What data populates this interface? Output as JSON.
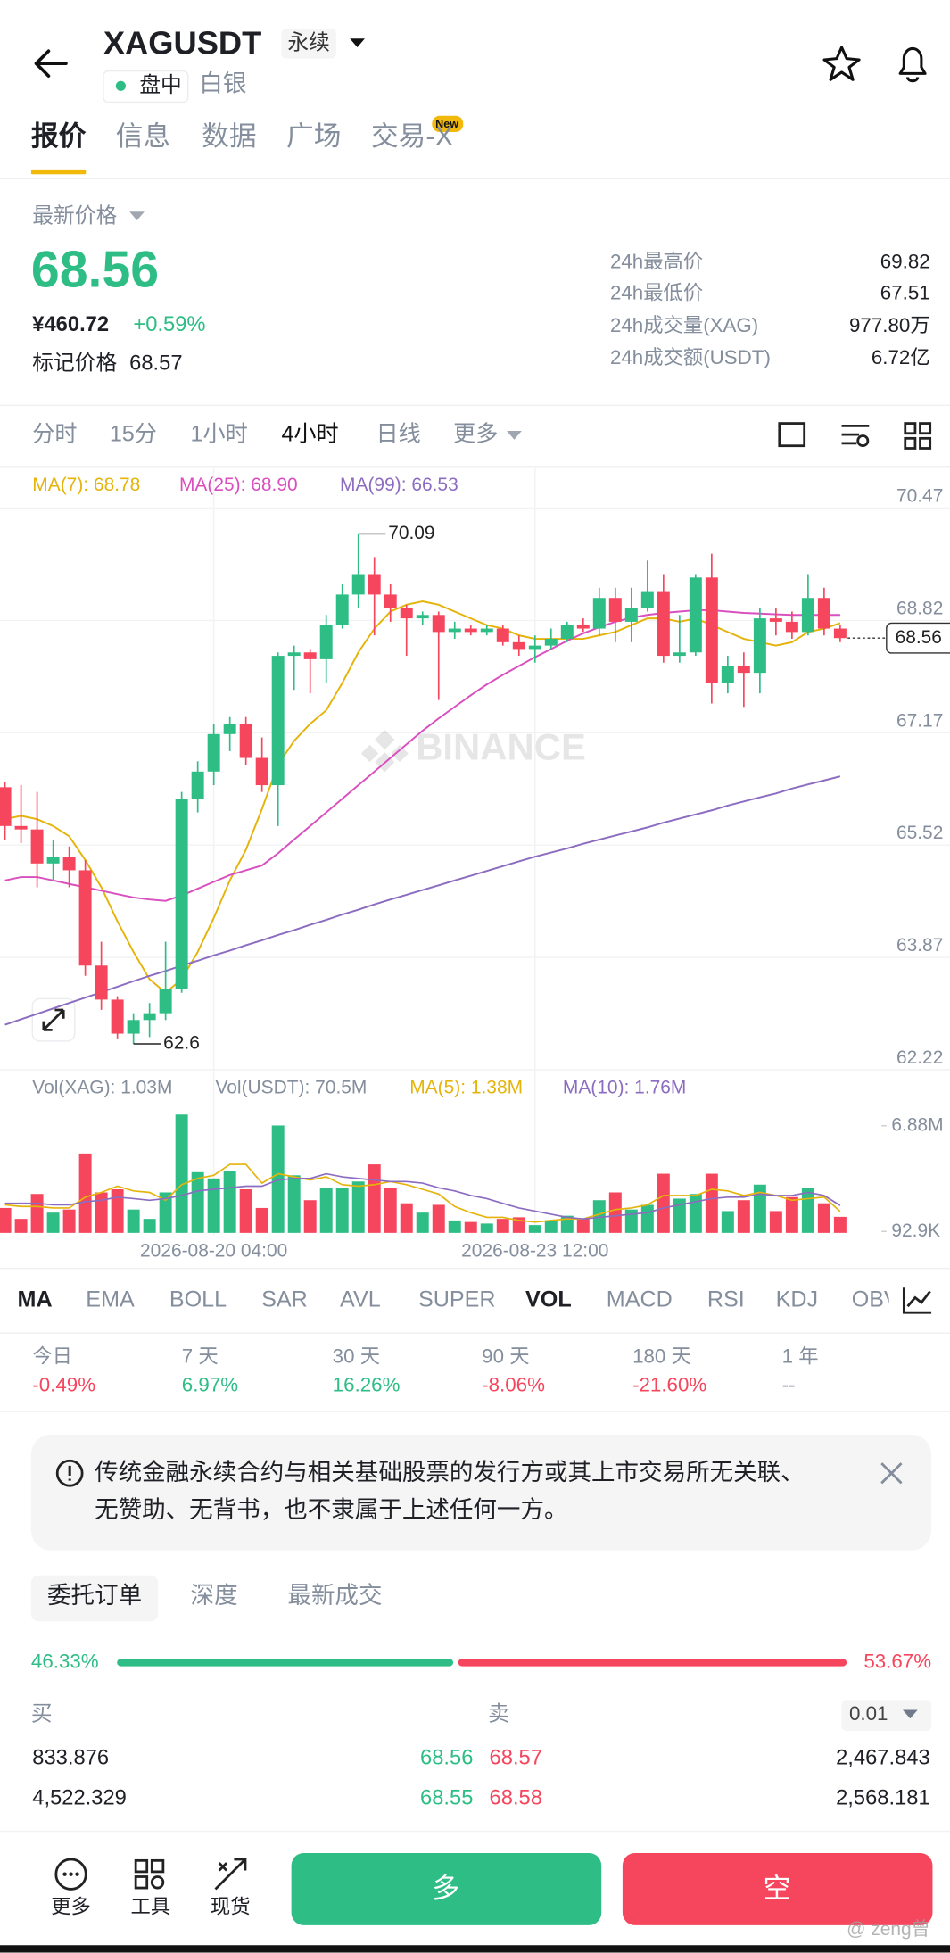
{
  "header": {
    "symbol": "XAGUSDT",
    "contract": "永续",
    "status": "盘中",
    "name": "白银"
  },
  "tabs": [
    "报价",
    "信息",
    "数据",
    "广场",
    "交易-X"
  ],
  "tab_badge": "New",
  "price": {
    "label": "最新价格",
    "last": "68.56",
    "cny": "¥460.72",
    "change": "+0.59%",
    "mark_label": "标记价格",
    "mark_price": "68.57"
  },
  "stats": [
    {
      "label": "24h最高价",
      "value": "69.82"
    },
    {
      "label": "24h最低价",
      "value": "67.51"
    },
    {
      "label": "24h成交量(XAG)",
      "value": "977.80万"
    },
    {
      "label": "24h成交额(USDT)",
      "value": "6.72亿"
    }
  ],
  "intervals": [
    "分时",
    "15分",
    "1小时",
    "4小时",
    "日线",
    "更多"
  ],
  "chart_data": {
    "type": "candlestick",
    "watermark": "BINANCE",
    "grid": true,
    "up_color": "#2ebd85",
    "down_color": "#f6465d",
    "categories": [
      null,
      null,
      null,
      null,
      null,
      null,
      null,
      null,
      null,
      null,
      null,
      null,
      null,
      "2026-08-20 04:00",
      null,
      null,
      null,
      null,
      null,
      null,
      null,
      null,
      null,
      null,
      null,
      null,
      null,
      null,
      null,
      null,
      null,
      null,
      null,
      "2026-08-23 12:00",
      null,
      null,
      null,
      null,
      null,
      null,
      null,
      null,
      null,
      null,
      null,
      null,
      null,
      null,
      null,
      null,
      null,
      null,
      null
    ],
    "open": [
      66.37,
      65.8,
      65.75,
      65.25,
      65.35,
      65.15,
      63.75,
      63.25,
      62.75,
      62.95,
      63.05,
      63.4,
      66.2,
      66.6,
      67.15,
      67.3,
      66.8,
      66.4,
      68.3,
      68.35,
      68.25,
      68.75,
      69.2,
      69.5,
      69.2,
      69.0,
      68.85,
      68.9,
      68.65,
      68.7,
      68.65,
      68.7,
      68.5,
      68.4,
      68.45,
      68.55,
      68.75,
      68.7,
      69.15,
      68.8,
      69.0,
      69.25,
      68.3,
      68.35,
      69.45,
      67.9,
      68.15,
      68.05,
      68.85,
      68.8,
      68.65,
      69.15,
      68.7
    ],
    "high": [
      66.45,
      66.4,
      66.3,
      65.6,
      65.5,
      65.3,
      64.1,
      63.3,
      63.05,
      63.2,
      64.1,
      66.3,
      66.75,
      67.3,
      67.4,
      67.4,
      67.1,
      68.35,
      68.45,
      68.4,
      68.9,
      69.35,
      70.09,
      69.75,
      69.35,
      69.05,
      68.95,
      68.95,
      68.8,
      68.75,
      68.75,
      68.75,
      68.6,
      68.6,
      68.7,
      68.8,
      68.85,
      69.3,
      69.3,
      69.3,
      69.7,
      69.5,
      68.9,
      69.5,
      69.8,
      68.3,
      68.35,
      69.0,
      69.0,
      68.95,
      69.5,
      69.3,
      68.75
    ],
    "low": [
      65.6,
      65.55,
      64.9,
      65.0,
      64.9,
      63.6,
      63.1,
      62.68,
      62.6,
      62.7,
      62.95,
      63.35,
      66.0,
      66.4,
      66.9,
      66.7,
      66.3,
      65.8,
      67.8,
      67.75,
      67.9,
      68.7,
      69.0,
      68.6,
      68.8,
      68.3,
      68.75,
      67.65,
      68.55,
      68.6,
      68.6,
      68.45,
      68.3,
      68.2,
      68.4,
      68.5,
      68.65,
      68.6,
      68.5,
      68.5,
      68.95,
      68.2,
      68.2,
      68.3,
      67.6,
      67.75,
      67.55,
      67.75,
      68.6,
      68.55,
      68.6,
      68.6,
      68.5
    ],
    "close": [
      65.8,
      65.75,
      65.25,
      65.35,
      65.15,
      63.75,
      63.25,
      62.75,
      62.95,
      63.05,
      63.4,
      66.2,
      66.6,
      67.15,
      67.3,
      66.8,
      66.4,
      68.3,
      68.35,
      68.25,
      68.75,
      69.2,
      69.5,
      69.2,
      69.0,
      68.85,
      68.9,
      68.65,
      68.7,
      68.65,
      68.7,
      68.5,
      68.4,
      68.45,
      68.55,
      68.75,
      68.7,
      69.15,
      68.8,
      69.0,
      69.25,
      68.3,
      68.35,
      69.45,
      67.9,
      68.15,
      68.05,
      68.85,
      68.8,
      68.65,
      69.15,
      68.7,
      68.56
    ],
    "ylim": [
      62.22,
      70.47
    ],
    "yticks": [
      70.47,
      68.82,
      67.17,
      65.52,
      63.87,
      62.22
    ],
    "series": [
      {
        "name": "MA(7): 68.78",
        "color": "#e5b40b",
        "values": [
          65.9,
          65.95,
          65.9,
          65.8,
          65.65,
          65.3,
          64.9,
          64.4,
          63.95,
          63.55,
          63.35,
          63.55,
          63.95,
          64.45,
          65.0,
          65.45,
          66.05,
          66.7,
          67.05,
          67.3,
          67.5,
          67.9,
          68.35,
          68.7,
          68.95,
          69.05,
          69.1,
          69.05,
          68.95,
          68.85,
          68.75,
          68.7,
          68.6,
          68.55,
          68.55,
          68.55,
          68.55,
          68.6,
          68.65,
          68.75,
          68.85,
          68.85,
          68.8,
          68.85,
          68.75,
          68.65,
          68.55,
          68.5,
          68.45,
          68.5,
          68.65,
          68.7,
          68.78
        ]
      },
      {
        "name": "MA(25): 68.90",
        "color": "#d94fbf",
        "values": [
          65.0,
          65.05,
          65.05,
          65.0,
          64.95,
          64.9,
          64.85,
          64.8,
          64.75,
          64.72,
          64.7,
          64.78,
          64.88,
          64.98,
          65.08,
          65.15,
          65.22,
          65.4,
          65.6,
          65.8,
          66.0,
          66.2,
          66.4,
          66.6,
          66.8,
          67.0,
          67.2,
          67.38,
          67.55,
          67.72,
          67.88,
          68.02,
          68.15,
          68.28,
          68.4,
          68.52,
          68.63,
          68.72,
          68.8,
          68.86,
          68.9,
          68.93,
          68.95,
          68.97,
          68.97,
          68.95,
          68.93,
          68.92,
          68.91,
          68.9,
          68.9,
          68.9,
          68.9
        ]
      },
      {
        "name": "MA(99): 66.53",
        "color": "#8c6cc0",
        "values": [
          62.88,
          62.96,
          63.04,
          63.12,
          63.2,
          63.28,
          63.36,
          63.44,
          63.52,
          63.6,
          63.67,
          63.75,
          63.82,
          63.9,
          63.97,
          64.05,
          64.12,
          64.2,
          64.27,
          64.35,
          64.42,
          64.5,
          64.57,
          64.65,
          64.72,
          64.79,
          64.86,
          64.93,
          65.0,
          65.07,
          65.14,
          65.21,
          65.28,
          65.35,
          65.41,
          65.47,
          65.54,
          65.6,
          65.66,
          65.72,
          65.78,
          65.85,
          65.91,
          65.97,
          66.03,
          66.1,
          66.16,
          66.22,
          66.28,
          66.35,
          66.41,
          66.47,
          66.53
        ]
      }
    ],
    "volume": {
      "headers": [
        "Vol(XAG): 1.03M",
        "Vol(USDT): 70.5M"
      ],
      "ylim": [
        0,
        8
      ],
      "yticks": [
        {
          "value": 6.88,
          "label": "6.88M"
        },
        {
          "value": 0.0929,
          "label": "92.9K"
        }
      ],
      "values": [
        1.6,
        0.9,
        2.5,
        1.3,
        1.5,
        5.1,
        2.6,
        2.8,
        1.5,
        0.9,
        2.6,
        7.6,
        3.9,
        3.5,
        4.0,
        2.8,
        1.6,
        6.9,
        3.7,
        2.1,
        2.9,
        2.9,
        3.3,
        4.4,
        2.9,
        1.9,
        1.3,
        1.8,
        0.8,
        0.7,
        0.6,
        0.9,
        1.0,
        0.5,
        0.8,
        1.1,
        0.9,
        2.1,
        2.6,
        1.5,
        1.8,
        3.8,
        2.2,
        2.5,
        3.8,
        1.4,
        2.1,
        3.1,
        1.4,
        2.3,
        2.9,
        1.9,
        1.03
      ],
      "series": [
        {
          "name": "MA(5): 1.38M",
          "color": "#e5b40b",
          "values": [
            1.8,
            1.7,
            1.7,
            1.6,
            1.6,
            2.3,
            2.6,
            3.0,
            2.7,
            2.6,
            2.1,
            3.1,
            3.5,
            3.7,
            4.4,
            4.4,
            3.2,
            3.8,
            3.6,
            3.4,
            3.6,
            3.1,
            3.0,
            3.1,
            3.3,
            3.1,
            2.8,
            2.5,
            1.7,
            1.3,
            1.0,
            1.0,
            0.8,
            0.7,
            0.8,
            0.9,
            0.9,
            1.2,
            1.5,
            1.6,
            1.8,
            2.4,
            2.4,
            2.4,
            2.8,
            2.7,
            2.4,
            2.6,
            2.4,
            2.1,
            2.2,
            2.3,
            1.38
          ]
        },
        {
          "name": "MA(10): 1.76M",
          "color": "#8c6cc0",
          "values": [
            1.9,
            1.9,
            1.9,
            1.8,
            1.8,
            2.0,
            2.1,
            2.3,
            2.2,
            2.1,
            2.2,
            2.4,
            2.7,
            2.8,
            2.9,
            3.0,
            3.0,
            3.4,
            3.5,
            3.5,
            3.8,
            3.6,
            3.5,
            3.4,
            3.3,
            3.3,
            3.2,
            2.9,
            2.7,
            2.4,
            2.2,
            1.9,
            1.6,
            1.4,
            1.2,
            1.0,
            0.9,
            1.0,
            1.1,
            1.2,
            1.3,
            1.6,
            1.8,
            2.0,
            2.2,
            2.3,
            2.3,
            2.5,
            2.4,
            2.4,
            2.6,
            2.4,
            1.76
          ]
        }
      ]
    }
  },
  "indicators": [
    "MA",
    "EMA",
    "BOLL",
    "SAR",
    "AVL",
    "SUPER",
    "VOL",
    "MACD",
    "RSI",
    "KDJ",
    "OBV"
  ],
  "performance": [
    {
      "period": "今日",
      "change": "-0.49%"
    },
    {
      "period": "7 天",
      "change": "6.97%"
    },
    {
      "period": "30 天",
      "change": "16.26%"
    },
    {
      "period": "90 天",
      "change": "-8.06%"
    },
    {
      "period": "180 天",
      "change": "-21.60%"
    },
    {
      "period": "1 年",
      "change": "--"
    }
  ],
  "notice": [
    "传统金融永续合约与相关基础股票的发行方或其上市交易所无关联、",
    "无赞助、无背书，也不隶属于上述任何一方。"
  ],
  "order_tabs": [
    "委托订单",
    "深度",
    "最新成交"
  ],
  "ratio": {
    "values": [
      46.33,
      53.67
    ],
    "value_labels": [
      "46.33%",
      "53.67%"
    ],
    "colors": [
      "#2ebd85",
      "#f6465d"
    ]
  },
  "book": {
    "buy_label": "买",
    "sell_label": "卖",
    "precision": "0.01",
    "rows": [
      [
        "833.876",
        "68.56",
        "68.57",
        "2,467.843"
      ],
      [
        "4,522.329",
        "68.55",
        "68.58",
        "2,568.181"
      ]
    ]
  },
  "bottom": {
    "items": [
      "更多",
      "工具",
      "现货"
    ],
    "long": "多",
    "short": "空",
    "watermark": "@ zeng曾"
  }
}
